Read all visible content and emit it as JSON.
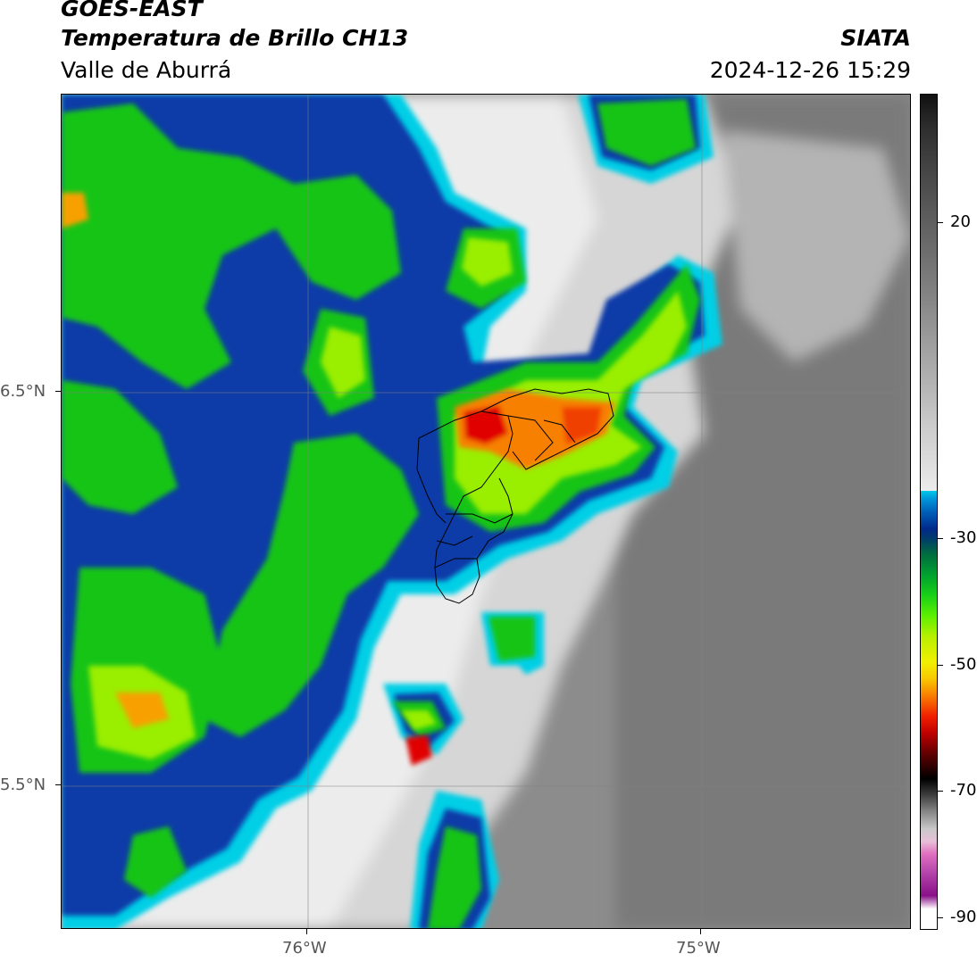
{
  "header": {
    "satellite": "GOES-EAST",
    "product": "Temperatura de Brillo CH13",
    "region": "Valle de Aburrá",
    "organization": "SIATA",
    "timestamp": "2024-12-26 15:29"
  },
  "map": {
    "lat_labels": [
      "6.5°N",
      "5.5°N"
    ],
    "lon_labels": [
      "76°W",
      "75°W"
    ],
    "colors": {
      "warm_gray": "#8a8a8a",
      "light_cloud": "#ececec",
      "cyan": "#00d8ec",
      "blue": "#0070c8",
      "navy": "#002a8c",
      "green": "#10c010",
      "lime": "#8aeb00",
      "yellow": "#f0f000",
      "orange": "#f88000",
      "red": "#e00000",
      "boundary": "#000000"
    }
  },
  "colorbar": {
    "labels": [
      "20",
      "-30",
      "-50",
      "-70",
      "-90"
    ],
    "values": [
      20,
      -30,
      -50,
      -70,
      -90
    ]
  }
}
